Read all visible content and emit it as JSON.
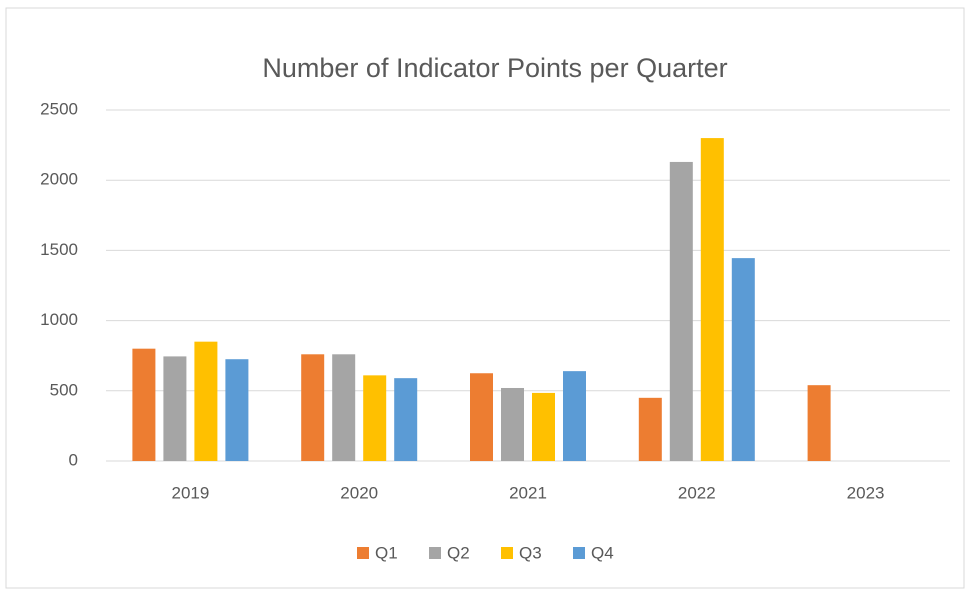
{
  "chart_data": {
    "type": "bar",
    "title": "Number of Indicator Points per Quarter",
    "categories": [
      "2019",
      "2020",
      "2021",
      "2022",
      "2023"
    ],
    "series": [
      {
        "name": "Q1",
        "color": "#ed7d31",
        "values": [
          800,
          760,
          625,
          450,
          540
        ]
      },
      {
        "name": "Q2",
        "color": "#a5a5a5",
        "values": [
          745,
          760,
          520,
          2130,
          null
        ]
      },
      {
        "name": "Q3",
        "color": "#ffc000",
        "values": [
          850,
          610,
          485,
          2300,
          null
        ]
      },
      {
        "name": "Q4",
        "color": "#5b9bd5",
        "values": [
          725,
          590,
          640,
          1445,
          null
        ]
      }
    ],
    "ylim": [
      0,
      2500
    ],
    "yticks": [
      0,
      500,
      1000,
      1500,
      2000,
      2500
    ],
    "grid": true,
    "legend": "bottom"
  }
}
